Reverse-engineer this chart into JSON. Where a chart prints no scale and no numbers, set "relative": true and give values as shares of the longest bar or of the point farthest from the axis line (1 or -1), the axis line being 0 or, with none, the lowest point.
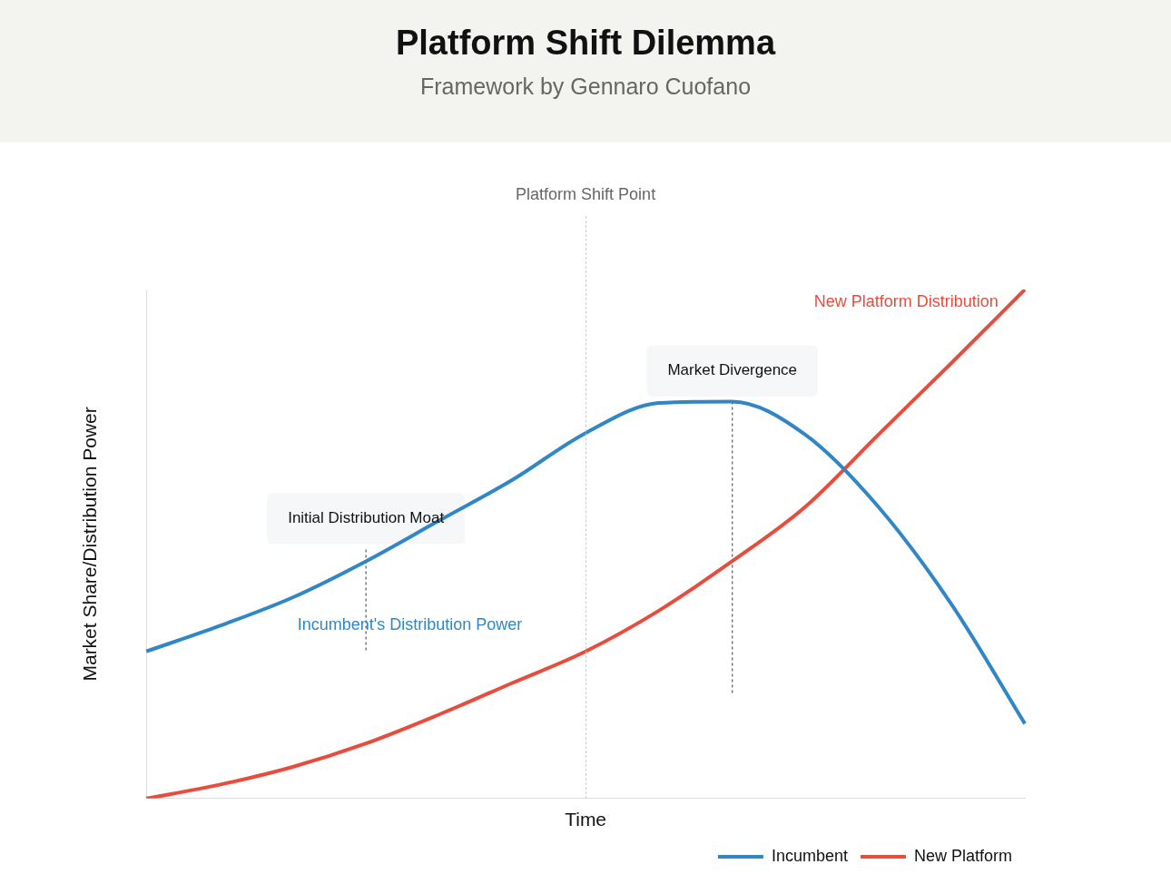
{
  "chart_data": {
    "type": "line",
    "title": "Platform Shift Dilemma",
    "subtitle": "Framework by Gennaro Cuofano",
    "xlabel": "Time",
    "ylabel": "Market Share/Distribution Power",
    "categories": [
      null,
      null,
      null,
      null,
      null,
      null,
      null,
      null,
      null,
      null,
      null,
      null,
      null
    ],
    "relative": true,
    "series": [
      {
        "name": "Incumbent",
        "color": "#3187c6",
        "values": [
          0.289,
          0.339,
          0.395,
          0.466,
          0.546,
          0.626,
          0.718,
          0.777,
          0.78,
          0.715,
          0.573,
          0.381,
          0.147
        ]
      },
      {
        "name": "New Platform",
        "color": "#e84c3d",
        "values": [
          0,
          0.027,
          0.062,
          0.108,
          0.165,
          0.227,
          0.289,
          0.369,
          0.466,
          0.573,
          0.715,
          0.856,
          1
        ]
      }
    ],
    "annotations": [
      "Initial Distribution Moat",
      "Market Divergence",
      "Incumbent's Distribution Power",
      "New Platform Distribution",
      "Platform Shift Point"
    ],
    "grid": false,
    "legend": "bottom right",
    "marker": "none",
    "line_style": "solid"
  }
}
